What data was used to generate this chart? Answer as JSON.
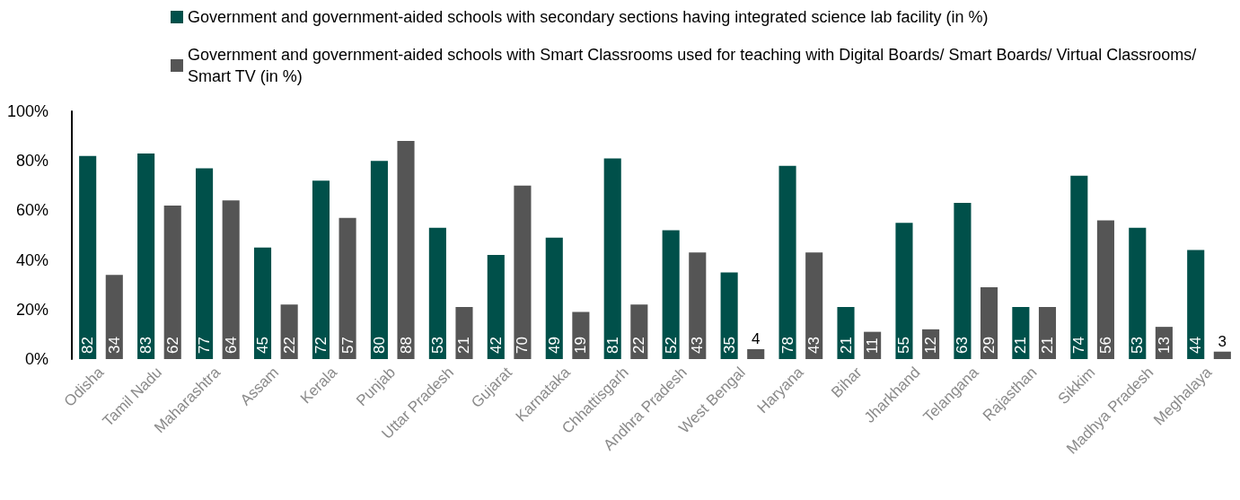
{
  "chart_data": {
    "type": "bar",
    "categories": [
      "Odisha",
      "Tamil Nadu",
      "Maharashtra",
      "Assam",
      "Kerala",
      "Punjab",
      "Uttar Pradesh",
      "Gujarat",
      "Karnataka",
      "Chhattisgarh",
      "Andhra Pradesh",
      "West Bengal",
      "Haryana",
      "Bihar",
      "Jharkhand",
      "Telangana",
      "Rajasthan",
      "Sikkim",
      "Madhya Pradesh",
      "Meghalaya"
    ],
    "series": [
      {
        "name": "Government and government-aided schools with secondary sections having integrated science lab facility (in %)",
        "color": "#00504a",
        "values": [
          82,
          83,
          77,
          45,
          72,
          80,
          53,
          42,
          49,
          81,
          52,
          35,
          78,
          21,
          55,
          63,
          21,
          74,
          53,
          44
        ]
      },
      {
        "name": "Government and government-aided schools with Smart Classrooms used for teaching with Digital Boards/ Smart Boards/ Virtual Classrooms/ Smart TV (in %)",
        "color": "#555555",
        "values": [
          34,
          62,
          64,
          22,
          57,
          88,
          21,
          70,
          19,
          22,
          43,
          4,
          43,
          11,
          12,
          29,
          21,
          56,
          13,
          3
        ]
      }
    ],
    "ylim": [
      0,
      100
    ],
    "yticks": [
      {
        "value": 0,
        "label": "0%"
      },
      {
        "value": 20,
        "label": "20%"
      },
      {
        "value": 40,
        "label": "40%"
      },
      {
        "value": 60,
        "label": "60%"
      },
      {
        "value": 80,
        "label": "80%"
      },
      {
        "value": 100,
        "label": "100%"
      }
    ],
    "grid": false,
    "legend": "top",
    "data_labels": true
  }
}
